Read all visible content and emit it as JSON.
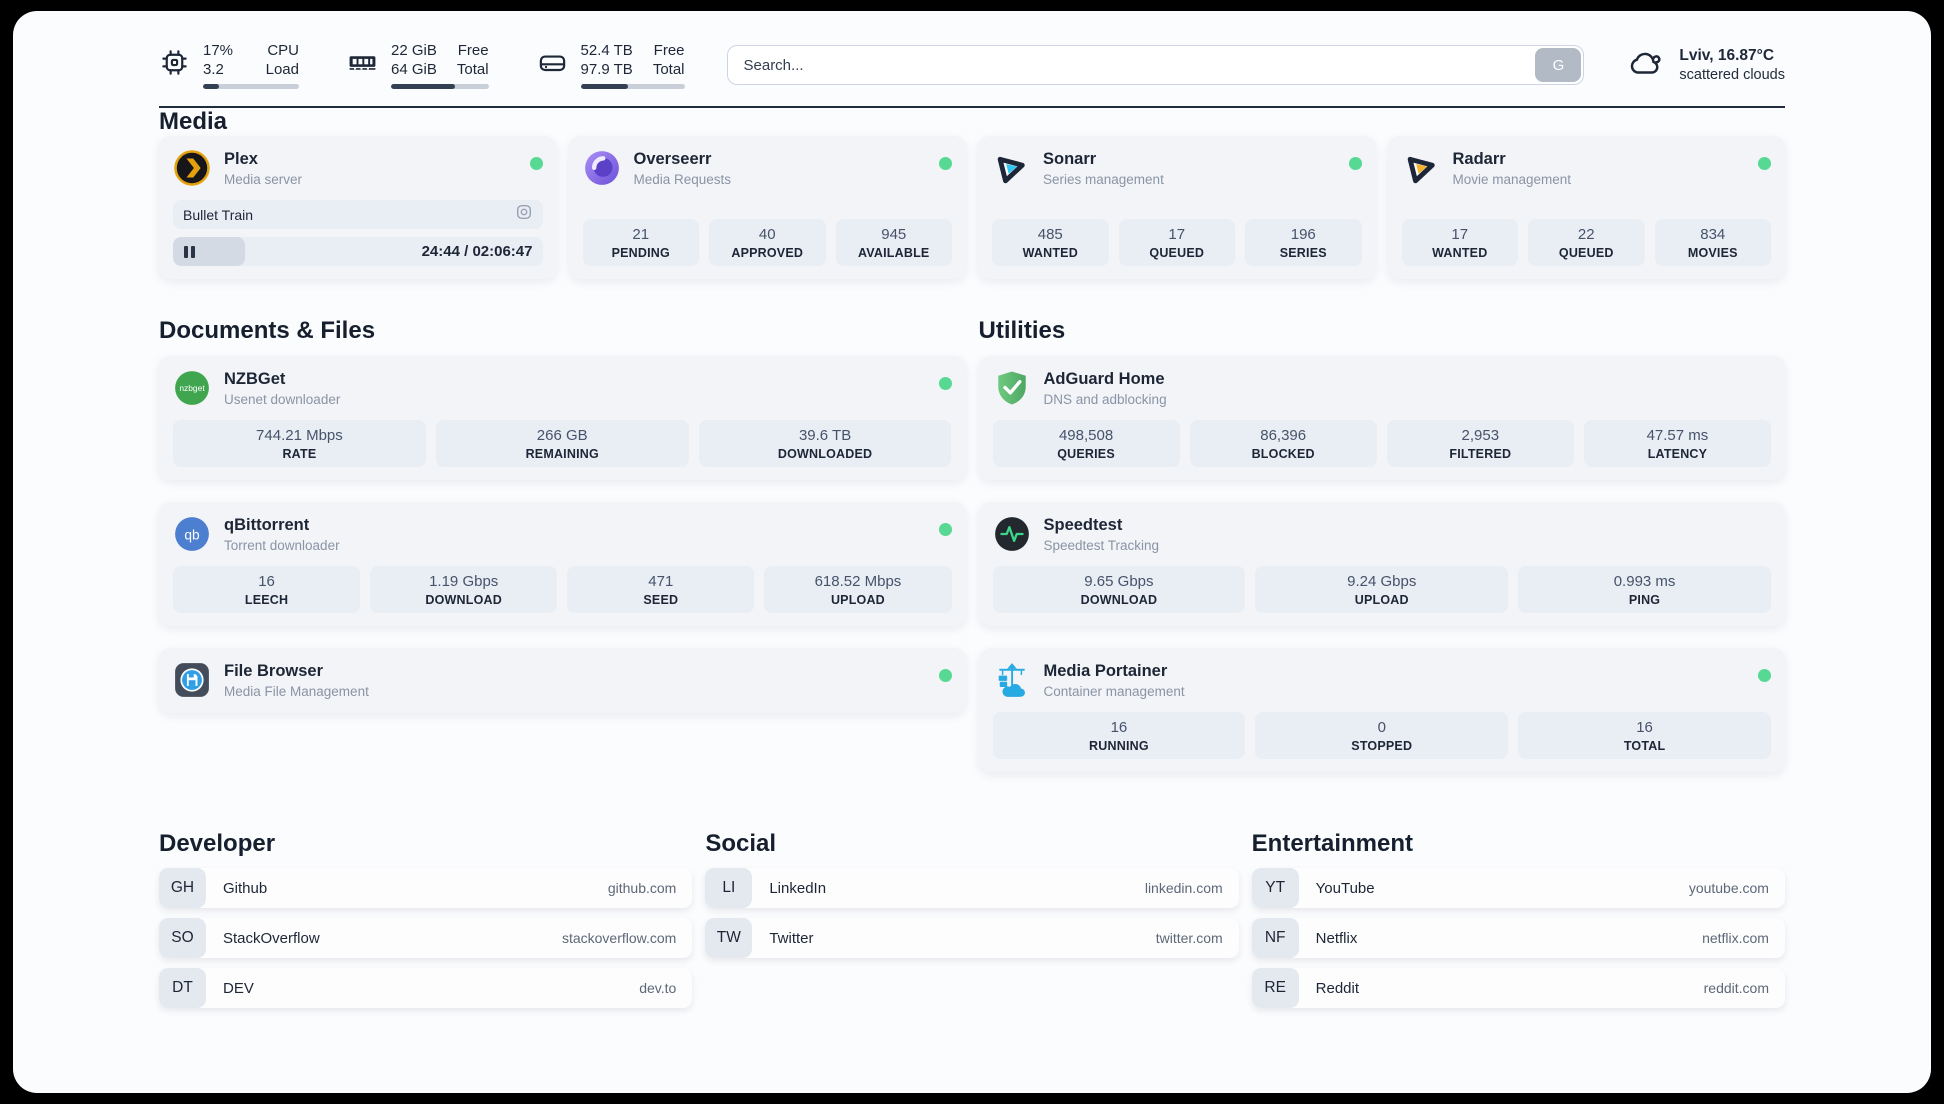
{
  "colors": {
    "status_online": "#57d993",
    "progress_fill": "#333f52",
    "accent_dark": "#1e2737"
  },
  "header": {
    "stats": [
      {
        "icon": "cpu-icon",
        "values": [
          "17%",
          "3.2"
        ],
        "labels": [
          "CPU",
          "Load"
        ],
        "progress_pct": 17
      },
      {
        "icon": "memory-icon",
        "values": [
          "22 GiB",
          "64 GiB"
        ],
        "labels": [
          "Free",
          "Total"
        ],
        "progress_pct": 66
      },
      {
        "icon": "storage-icon",
        "values": [
          "52.4 TB",
          "97.9 TB"
        ],
        "labels": [
          "Free",
          "Total"
        ],
        "progress_pct": 46
      }
    ],
    "search": {
      "placeholder": "Search...",
      "button_label": "G"
    },
    "weather": {
      "location": "Lviv, 16.87°C",
      "condition": "scattered clouds"
    }
  },
  "media": {
    "title": "Media",
    "plex": {
      "title": "Plex",
      "subtitle": "Media server",
      "now_playing": "Bullet Train",
      "time": "24:44 / 02:06:47",
      "progress_pct": 19.5
    },
    "overseerr": {
      "title": "Overseerr",
      "subtitle": "Media Requests",
      "stats": [
        {
          "value": "21",
          "label": "PENDING"
        },
        {
          "value": "40",
          "label": "APPROVED"
        },
        {
          "value": "945",
          "label": "AVAILABLE"
        }
      ]
    },
    "sonarr": {
      "title": "Sonarr",
      "subtitle": "Series management",
      "stats": [
        {
          "value": "485",
          "label": "WANTED"
        },
        {
          "value": "17",
          "label": "QUEUED"
        },
        {
          "value": "196",
          "label": "SERIES"
        }
      ]
    },
    "radarr": {
      "title": "Radarr",
      "subtitle": "Movie management",
      "stats": [
        {
          "value": "17",
          "label": "WANTED"
        },
        {
          "value": "22",
          "label": "QUEUED"
        },
        {
          "value": "834",
          "label": "MOVIES"
        }
      ]
    }
  },
  "documents": {
    "title": "Documents & Files",
    "nzbget": {
      "title": "NZBGet",
      "subtitle": "Usenet downloader",
      "stats": [
        {
          "value": "744.21 Mbps",
          "label": "RATE"
        },
        {
          "value": "266 GB",
          "label": "REMAINING"
        },
        {
          "value": "39.6 TB",
          "label": "DOWNLOADED"
        }
      ]
    },
    "qbittorrent": {
      "title": "qBittorrent",
      "subtitle": "Torrent downloader",
      "stats": [
        {
          "value": "16",
          "label": "LEECH"
        },
        {
          "value": "1.19 Gbps",
          "label": "DOWNLOAD"
        },
        {
          "value": "471",
          "label": "SEED"
        },
        {
          "value": "618.52 Mbps",
          "label": "UPLOAD"
        }
      ]
    },
    "filebrowser": {
      "title": "File Browser",
      "subtitle": "Media File Management"
    }
  },
  "utilities": {
    "title": "Utilities",
    "adguard": {
      "title": "AdGuard Home",
      "subtitle": "DNS and adblocking",
      "stats": [
        {
          "value": "498,508",
          "label": "QUERIES"
        },
        {
          "value": "86,396",
          "label": "BLOCKED"
        },
        {
          "value": "2,953",
          "label": "FILTERED"
        },
        {
          "value": "47.57 ms",
          "label": "LATENCY"
        }
      ]
    },
    "speedtest": {
      "title": "Speedtest",
      "subtitle": "Speedtest Tracking",
      "stats": [
        {
          "value": "9.65 Gbps",
          "label": "DOWNLOAD"
        },
        {
          "value": "9.24 Gbps",
          "label": "UPLOAD"
        },
        {
          "value": "0.993 ms",
          "label": "PING"
        }
      ]
    },
    "portainer": {
      "title": "Media Portainer",
      "subtitle": "Container management",
      "stats": [
        {
          "value": "16",
          "label": "RUNNING"
        },
        {
          "value": "0",
          "label": "STOPPED"
        },
        {
          "value": "16",
          "label": "TOTAL"
        }
      ]
    }
  },
  "links": {
    "developer": {
      "title": "Developer",
      "items": [
        {
          "badge": "GH",
          "name": "Github",
          "url": "github.com"
        },
        {
          "badge": "SO",
          "name": "StackOverflow",
          "url": "stackoverflow.com"
        },
        {
          "badge": "DT",
          "name": "DEV",
          "url": "dev.to"
        }
      ]
    },
    "social": {
      "title": "Social",
      "items": [
        {
          "badge": "LI",
          "name": "LinkedIn",
          "url": "linkedin.com"
        },
        {
          "badge": "TW",
          "name": "Twitter",
          "url": "twitter.com"
        }
      ]
    },
    "entertainment": {
      "title": "Entertainment",
      "items": [
        {
          "badge": "YT",
          "name": "YouTube",
          "url": "youtube.com"
        },
        {
          "badge": "NF",
          "name": "Netflix",
          "url": "netflix.com"
        },
        {
          "badge": "RE",
          "name": "Reddit",
          "url": "reddit.com"
        }
      ]
    }
  }
}
